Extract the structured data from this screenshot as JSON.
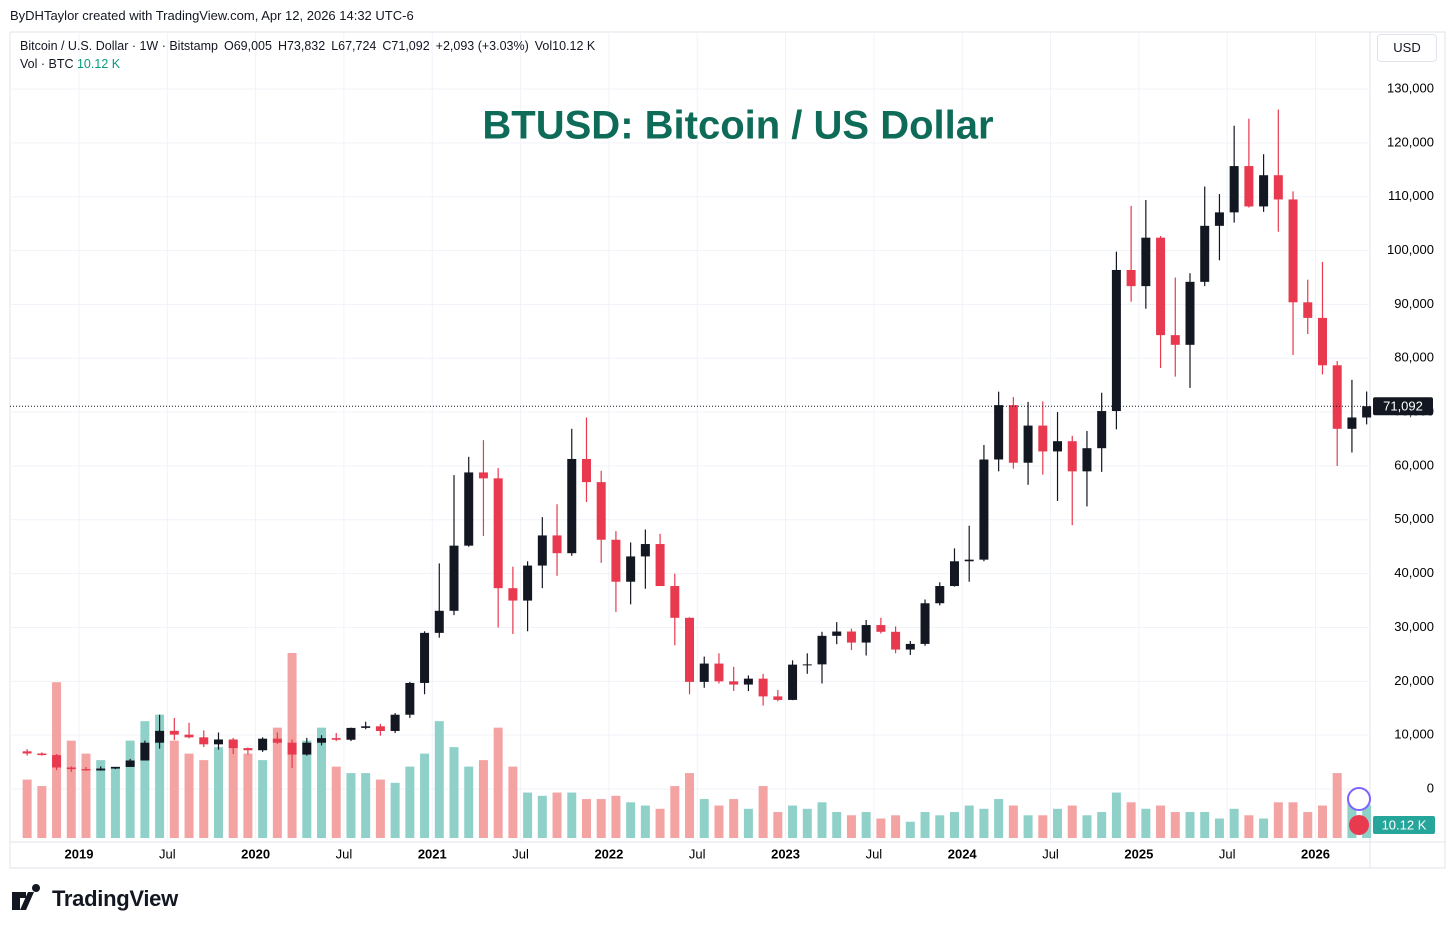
{
  "header": "ByDHTaylor created with TradingView.com, Apr 12, 2026 14:32 UTC-6",
  "legend": [
    "Bitcoin / U.S. Dollar · 1W · Bitstamp",
    "O69,005",
    "H73,832",
    "L67,724",
    "C71,092",
    "+2,093 (+3.03%)",
    "Vol10.12 K"
  ],
  "volume_legend": [
    "Vol · BTC",
    "10.12 K"
  ],
  "currency": "USD",
  "footer": "TradingView",
  "chart_data": {
    "type": "candlestick",
    "title": "BTUSD: Bitcoin / US Dollar",
    "x": [
      "2018-09",
      "2018-10",
      "2018-11",
      "2018-12",
      "2019-01",
      "2019-02",
      "2019-03",
      "2019-04",
      "2019-05",
      "2019-06",
      "2019-07",
      "2019-08",
      "2019-09",
      "2019-10",
      "2019-11",
      "2019-12",
      "2020-01",
      "2020-02",
      "2020-03",
      "2020-04",
      "2020-05",
      "2020-06",
      "2020-07",
      "2020-08",
      "2020-09",
      "2020-10",
      "2020-11",
      "2020-12",
      "2021-01",
      "2021-02",
      "2021-03",
      "2021-04",
      "2021-05",
      "2021-06",
      "2021-07",
      "2021-08",
      "2021-09",
      "2021-10",
      "2021-11",
      "2021-12",
      "2022-01",
      "2022-02",
      "2022-03",
      "2022-04",
      "2022-05",
      "2022-06",
      "2022-07",
      "2022-08",
      "2022-09",
      "2022-10",
      "2022-11",
      "2022-12",
      "2023-01",
      "2023-02",
      "2023-03",
      "2023-04",
      "2023-05",
      "2023-06",
      "2023-07",
      "2023-08",
      "2023-09",
      "2023-10",
      "2023-11",
      "2023-12",
      "2024-01",
      "2024-02",
      "2024-03",
      "2024-04",
      "2024-05",
      "2024-06",
      "2024-07",
      "2024-08",
      "2024-09",
      "2024-10",
      "2024-11",
      "2024-12",
      "2025-01",
      "2025-02",
      "2025-03",
      "2025-04",
      "2025-05",
      "2025-06",
      "2025-07",
      "2025-08",
      "2025-09",
      "2025-10",
      "2025-11",
      "2025-12",
      "2026-01",
      "2026-02",
      "2026-03",
      "2026-04"
    ],
    "open": [
      7000,
      6600,
      6300,
      4000,
      3700,
      3450,
      3800,
      4100,
      5300,
      8600,
      10800,
      10100,
      9600,
      8300,
      9200,
      7600,
      7200,
      9350,
      8600,
      6400,
      8600,
      9450,
      9150,
      11350,
      11650,
      10780,
      13800,
      19700,
      29000,
      33100,
      45200,
      58800,
      57700,
      37300,
      35000,
      41500,
      47100,
      43800,
      61300,
      57000,
      46300,
      38500,
      43200,
      45500,
      37700,
      31800,
      19900,
      23300,
      20000,
      19400,
      20500,
      17200,
      16550,
      23100,
      23150,
      28450,
      29250,
      27200,
      30450,
      29200,
      25900,
      26950,
      34500,
      37700,
      42300,
      42600,
      61200,
      71300,
      60600,
      67500,
      62700,
      64600,
      59000,
      63300,
      70200,
      96400,
      93400,
      102400,
      84300,
      82500,
      94200,
      104600,
      107100,
      115700,
      108200,
      114000,
      109500,
      90400,
      87500,
      78700,
      66900,
      69005
    ],
    "high": [
      7400,
      6800,
      6500,
      4200,
      4100,
      4200,
      4100,
      5600,
      9000,
      13800,
      13200,
      12300,
      10900,
      10500,
      9500,
      7700,
      9600,
      10500,
      9200,
      9500,
      10000,
      10400,
      11400,
      12500,
      12100,
      14100,
      19900,
      29300,
      41900,
      58300,
      61700,
      64800,
      59600,
      41300,
      42300,
      50500,
      52900,
      66900,
      69000,
      59100,
      47900,
      45800,
      48200,
      47400,
      40000,
      31900,
      24600,
      25200,
      22700,
      21100,
      21400,
      18400,
      23900,
      25200,
      29200,
      31000,
      29800,
      31400,
      31800,
      30200,
      27500,
      35200,
      38400,
      44700,
      48900,
      63900,
      73800,
      72800,
      71900,
      72000,
      70000,
      65600,
      66500,
      73600,
      99800,
      108300,
      109400,
      102700,
      95000,
      95800,
      111900,
      110500,
      123200,
      124500,
      117900,
      126200,
      111000,
      94600,
      97900,
      79500,
      76000,
      73832
    ],
    "low": [
      6200,
      6200,
      3500,
      3200,
      3400,
      3400,
      3700,
      4100,
      5300,
      7500,
      9100,
      9400,
      7800,
      7300,
      6500,
      6400,
      6900,
      8400,
      3900,
      6200,
      8100,
      8900,
      8900,
      11100,
      9900,
      10400,
      13200,
      17600,
      28100,
      32300,
      45000,
      47000,
      30000,
      28800,
      29300,
      37300,
      39600,
      43300,
      53300,
      42000,
      32900,
      34300,
      37200,
      37700,
      26700,
      17600,
      18800,
      19600,
      18200,
      18200,
      15500,
      16300,
      16500,
      21400,
      19600,
      26900,
      25800,
      24800,
      28900,
      25200,
      24900,
      26600,
      34100,
      37600,
      38500,
      42300,
      59000,
      59500,
      56500,
      58400,
      53500,
      49000,
      52500,
      58900,
      66800,
      90500,
      89200,
      78200,
      76600,
      74500,
      93400,
      98200,
      105200,
      108000,
      107200,
      103500,
      80600,
      84500,
      77000,
      60000,
      62500,
      67724
    ],
    "close": [
      6600,
      6300,
      4000,
      3700,
      3450,
      3800,
      4100,
      5300,
      8600,
      10800,
      10100,
      9600,
      8300,
      9200,
      7600,
      7200,
      9350,
      8600,
      6400,
      8600,
      9450,
      9150,
      11350,
      11650,
      10780,
      13800,
      19700,
      29000,
      33100,
      45200,
      58800,
      57700,
      37300,
      35000,
      41500,
      47100,
      43800,
      61300,
      57000,
      46300,
      38500,
      43200,
      45500,
      37700,
      31800,
      19900,
      23300,
      20000,
      19400,
      20500,
      17200,
      16550,
      23100,
      23150,
      28450,
      29250,
      27200,
      30450,
      29200,
      25900,
      26950,
      34500,
      37700,
      42300,
      42600,
      61200,
      71300,
      60600,
      67500,
      62700,
      64600,
      59000,
      63300,
      70200,
      96400,
      93400,
      102400,
      84300,
      82500,
      94200,
      104600,
      107100,
      115700,
      108200,
      114000,
      109500,
      90400,
      87500,
      78700,
      66900,
      69005,
      71092
    ],
    "volume": [
      18000,
      16000,
      48000,
      30000,
      26000,
      24000,
      22000,
      30000,
      36000,
      38000,
      30000,
      26000,
      24000,
      28000,
      30000,
      26000,
      24000,
      34000,
      57000,
      30000,
      34000,
      22000,
      20000,
      20000,
      18000,
      17000,
      22000,
      26000,
      36000,
      28000,
      22000,
      24000,
      34000,
      22000,
      14000,
      13000,
      14000,
      14000,
      12000,
      12000,
      13000,
      11000,
      10000,
      9000,
      16000,
      20000,
      12000,
      10000,
      12000,
      9000,
      16000,
      8000,
      10000,
      9000,
      11000,
      8000,
      7000,
      8000,
      6000,
      7000,
      5000,
      8000,
      7000,
      8000,
      10000,
      9000,
      12000,
      10000,
      7000,
      7000,
      9000,
      10000,
      7000,
      8000,
      14000,
      11000,
      9000,
      10000,
      8000,
      8000,
      8000,
      6000,
      9000,
      7000,
      6000,
      11000,
      11000,
      8000,
      10000,
      20000,
      13000,
      10120
    ],
    "up_color": "#131722",
    "down_color": "#e8394f",
    "volume_up_color": "#8fd1c9",
    "volume_down_color": "#f4a3a3",
    "ylim": [
      -9840,
      140600
    ],
    "yticks": [
      0,
      {
        "value": 10000,
        "label": "10,000"
      },
      {
        "value": 20000,
        "label": "20,000"
      },
      {
        "value": 30000,
        "label": "30,000"
      },
      {
        "value": 40000,
        "label": "40,000"
      },
      {
        "value": 50000,
        "label": "50,000"
      },
      {
        "value": 60000,
        "label": "60,000"
      },
      {
        "value": 70000,
        "label": "70,000"
      },
      {
        "value": 80000,
        "label": "80,000"
      },
      {
        "value": 90000,
        "label": "90,000"
      },
      {
        "value": 100000,
        "label": "100,000"
      },
      {
        "value": 110000,
        "label": "110,000"
      },
      {
        "value": 120000,
        "label": "120,000"
      },
      {
        "value": 130000,
        "label": "130,000"
      }
    ],
    "xticks": [
      {
        "value": "2019-01",
        "label": "2019"
      },
      {
        "value": "2019-07",
        "label": "Jul"
      },
      {
        "value": "2020-01",
        "label": "2020"
      },
      {
        "value": "2020-07",
        "label": "Jul"
      },
      {
        "value": "2021-01",
        "label": "2021"
      },
      {
        "value": "2021-07",
        "label": "Jul"
      },
      {
        "value": "2022-01",
        "label": "2022"
      },
      {
        "value": "2022-07",
        "label": "Jul"
      },
      {
        "value": "2023-01",
        "label": "2023"
      },
      {
        "value": "2023-07",
        "label": "Jul"
      },
      {
        "value": "2024-01",
        "label": "2024"
      },
      {
        "value": "2024-07",
        "label": "Jul"
      },
      {
        "value": "2025-01",
        "label": "2025"
      },
      {
        "value": "2025-07",
        "label": "Jul"
      },
      {
        "value": "2026-01",
        "label": "2026"
      }
    ],
    "last_price": {
      "value": 71092,
      "label": "71,092"
    },
    "last_volume": {
      "value": 10120,
      "label": "10.12 K"
    },
    "grid": true
  }
}
